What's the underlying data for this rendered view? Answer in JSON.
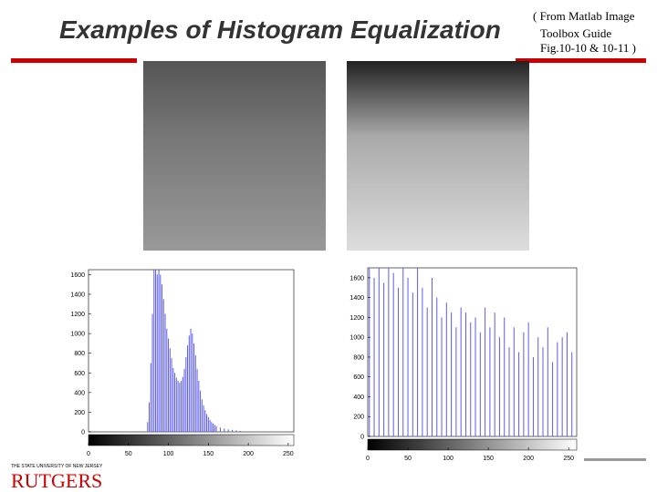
{
  "title": "Examples of Histogram Equalization",
  "note": [
    "( From Matlab Image",
    "Toolbox Guide",
    "Fig.10-10 & 10-11 )"
  ],
  "logo": {
    "small": "THE STATE UNIVERSITY OF NEW JERSEY",
    "big": "RUTGERS"
  },
  "chart_data": [
    {
      "type": "stem",
      "color": "#5b5bf0",
      "x": [
        74,
        76,
        78,
        80,
        82,
        84,
        86,
        88,
        90,
        92,
        94,
        96,
        98,
        100,
        102,
        104,
        106,
        108,
        110,
        112,
        114,
        116,
        118,
        120,
        122,
        124,
        126,
        128,
        130,
        132,
        134,
        136,
        138,
        140,
        142,
        144,
        146,
        148,
        150,
        152,
        154,
        156,
        158,
        160,
        165,
        170,
        175,
        180,
        185,
        190
      ],
      "values": [
        100,
        300,
        700,
        1200,
        1650,
        1650,
        1600,
        1650,
        1600,
        1500,
        1350,
        1200,
        1050,
        950,
        850,
        750,
        650,
        600,
        550,
        520,
        500,
        520,
        560,
        640,
        760,
        880,
        980,
        1050,
        1000,
        900,
        780,
        640,
        520,
        420,
        330,
        270,
        220,
        180,
        150,
        120,
        100,
        85,
        70,
        60,
        45,
        35,
        25,
        20,
        15,
        10
      ],
      "xlim": [
        0,
        257
      ],
      "ylim": [
        0,
        1650
      ],
      "xticks": [
        0,
        50,
        100,
        150,
        200,
        250
      ],
      "yticks": [
        0,
        200,
        400,
        600,
        800,
        1000,
        1200,
        1400,
        1600
      ]
    },
    {
      "type": "stem",
      "color": "#5b5bf0",
      "x": [
        2,
        8,
        14,
        20,
        26,
        32,
        38,
        44,
        50,
        56,
        62,
        68,
        74,
        80,
        86,
        92,
        98,
        104,
        110,
        116,
        122,
        128,
        134,
        140,
        146,
        152,
        158,
        164,
        170,
        176,
        182,
        188,
        194,
        200,
        206,
        212,
        218,
        224,
        230,
        236,
        242,
        248,
        254
      ],
      "values": [
        1700,
        1600,
        1700,
        1550,
        1700,
        1650,
        1500,
        1700,
        1600,
        1450,
        1700,
        1500,
        1300,
        1600,
        1400,
        1200,
        1350,
        1250,
        1100,
        1300,
        1250,
        1150,
        1200,
        1050,
        1300,
        1100,
        1250,
        1000,
        1200,
        900,
        1100,
        850,
        1050,
        1150,
        800,
        1000,
        900,
        1100,
        750,
        950,
        1000,
        1050,
        850
      ],
      "xlim": [
        0,
        260
      ],
      "ylim": [
        0,
        1700
      ],
      "xticks": [
        0,
        50,
        100,
        150,
        200,
        250
      ],
      "yticks": [
        0,
        200,
        400,
        600,
        800,
        1000,
        1200,
        1400,
        1600
      ]
    }
  ]
}
